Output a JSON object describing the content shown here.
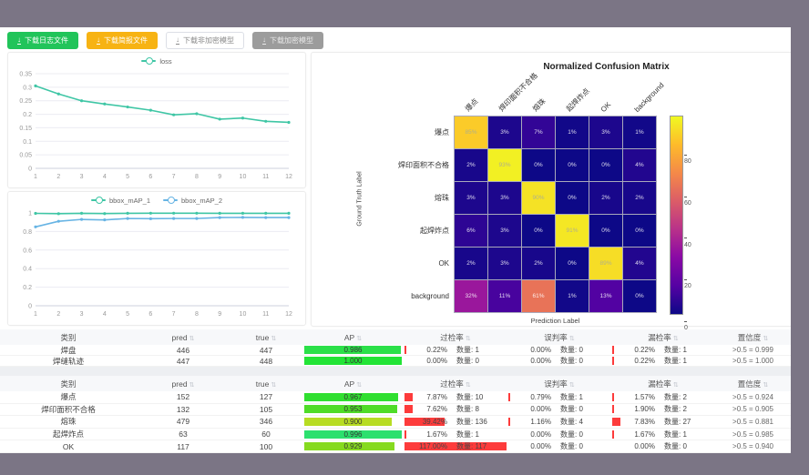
{
  "frame": {
    "bar_color": "#7b7585"
  },
  "toolbar": {
    "buttons": [
      {
        "label": "下载日志文件",
        "variant": "green"
      },
      {
        "label": "下载简报文件",
        "variant": "orange"
      },
      {
        "label": "下载非加密模型",
        "variant": "white"
      },
      {
        "label": "下载加密模型",
        "variant": "gray"
      }
    ]
  },
  "chart_data": [
    {
      "id": "loss-chart",
      "type": "line",
      "x": [
        1,
        2,
        3,
        4,
        5,
        6,
        7,
        8,
        9,
        10,
        11,
        12
      ],
      "series": [
        {
          "name": "loss",
          "color": "#3fc6a5",
          "values": [
            0.305,
            0.275,
            0.25,
            0.238,
            0.227,
            0.215,
            0.198,
            0.202,
            0.182,
            0.186,
            0.174,
            0.17
          ]
        }
      ],
      "ylim": [
        0,
        0.35
      ],
      "yticks": [
        0,
        0.05,
        0.1,
        0.15,
        0.2,
        0.25,
        0.3,
        0.35
      ],
      "legend_position": "top"
    },
    {
      "id": "bbox-map-chart",
      "type": "line",
      "x": [
        1,
        2,
        3,
        4,
        5,
        6,
        7,
        8,
        9,
        10,
        11,
        12
      ],
      "series": [
        {
          "name": "bbox_mAP_1",
          "color": "#3fc6a5",
          "values": [
            0.995,
            0.992,
            0.996,
            0.993,
            0.996,
            0.997,
            0.997,
            0.997,
            0.996,
            0.996,
            0.996,
            0.996
          ]
        },
        {
          "name": "bbox_mAP_2",
          "color": "#67b4e4",
          "values": [
            0.85,
            0.91,
            0.93,
            0.925,
            0.94,
            0.938,
            0.94,
            0.94,
            0.95,
            0.952,
            0.95,
            0.95
          ]
        }
      ],
      "ylim": [
        0,
        1
      ],
      "yticks": [
        0,
        0.2,
        0.4,
        0.6,
        0.8,
        1
      ],
      "legend_position": "top"
    },
    {
      "id": "confusion-matrix",
      "type": "heatmap",
      "title": "Normalized Confusion Matrix",
      "xlabel": "Prediction Label",
      "ylabel": "Ground Truth Label",
      "labels": [
        "爆点",
        "焊印面积不合格",
        "熔珠",
        "起焊炸点",
        "OK",
        "background"
      ],
      "unit": "%",
      "vmax": 95,
      "colorbar_ticks": [
        0,
        20,
        40,
        60,
        80
      ],
      "rows": [
        [
          85,
          3,
          7,
          1,
          3,
          1
        ],
        [
          2,
          93,
          0,
          0,
          0,
          4
        ],
        [
          3,
          3,
          90,
          0,
          2,
          2
        ],
        [
          6,
          3,
          0,
          91,
          0,
          0
        ],
        [
          2,
          3,
          2,
          0,
          89,
          4
        ],
        [
          32,
          11,
          61,
          1,
          13,
          0
        ]
      ]
    }
  ],
  "tables": {
    "headers": {
      "category": "类别",
      "pred": "pred",
      "true": "true",
      "ap": "AP",
      "over": "过检率",
      "mis": "误判率",
      "miss": "漏检率",
      "conf": "置信度"
    },
    "count_label": "数量:",
    "sort_icon": "⇅",
    "groups": [
      {
        "rows": [
          {
            "name": "焊盘",
            "pred": 446,
            "true": 447,
            "ap": "0.986",
            "ap_color": "#2be049",
            "over": {
              "pct": "0.22%",
              "count": 1
            },
            "mis": {
              "pct": "0.00%",
              "count": 0
            },
            "miss": {
              "pct": "0.22%",
              "count": 1
            },
            "conf": ">0.5 = 0.999"
          },
          {
            "name": "焊缝轨迹",
            "pred": 447,
            "true": 448,
            "ap": "1.000",
            "ap_color": "#23e436",
            "over": {
              "pct": "0.00%",
              "count": 0
            },
            "mis": {
              "pct": "0.00%",
              "count": 0
            },
            "miss": {
              "pct": "0.22%",
              "count": 1
            },
            "conf": ">0.5 = 1.000"
          }
        ]
      },
      {
        "rows": [
          {
            "name": "爆点",
            "pred": 152,
            "true": 127,
            "ap": "0.967",
            "ap_color": "#30df30",
            "over": {
              "pct": "7.87%",
              "count": 10
            },
            "mis": {
              "pct": "0.79%",
              "count": 1
            },
            "miss": {
              "pct": "1.57%",
              "count": 2
            },
            "conf": ">0.5 = 0.924"
          },
          {
            "name": "焊印面积不合格",
            "pred": 132,
            "true": 105,
            "ap": "0.953",
            "ap_color": "#4fdc28",
            "over": {
              "pct": "7.62%",
              "count": 8
            },
            "mis": {
              "pct": "0.00%",
              "count": 0
            },
            "miss": {
              "pct": "1.90%",
              "count": 2
            },
            "conf": ">0.5 = 0.905"
          },
          {
            "name": "熔珠",
            "pred": 479,
            "true": 346,
            "ap": "0.900",
            "ap_color": "#b7dc23",
            "over": {
              "pct": "39.42%",
              "count": 136
            },
            "mis": {
              "pct": "1.16%",
              "count": 4
            },
            "miss": {
              "pct": "7.83%",
              "count": 27
            },
            "conf": ">0.5 = 0.881"
          },
          {
            "name": "起焊炸点",
            "pred": 63,
            "true": 60,
            "ap": "0.996",
            "ap_color": "#2ce06e",
            "over": {
              "pct": "1.67%",
              "count": 1
            },
            "mis": {
              "pct": "0.00%",
              "count": 0
            },
            "miss": {
              "pct": "1.67%",
              "count": 1
            },
            "conf": ">0.5 = 0.985"
          },
          {
            "name": "OK",
            "pred": 117,
            "true": 100,
            "ap": "0.929",
            "ap_color": "#86da1f",
            "over": {
              "pct": "117.00%",
              "count": 117
            },
            "mis": {
              "pct": "0.00%",
              "count": 0
            },
            "miss": {
              "pct": "0.00%",
              "count": 0
            },
            "conf": ">0.5 = 0.940"
          }
        ]
      }
    ]
  }
}
